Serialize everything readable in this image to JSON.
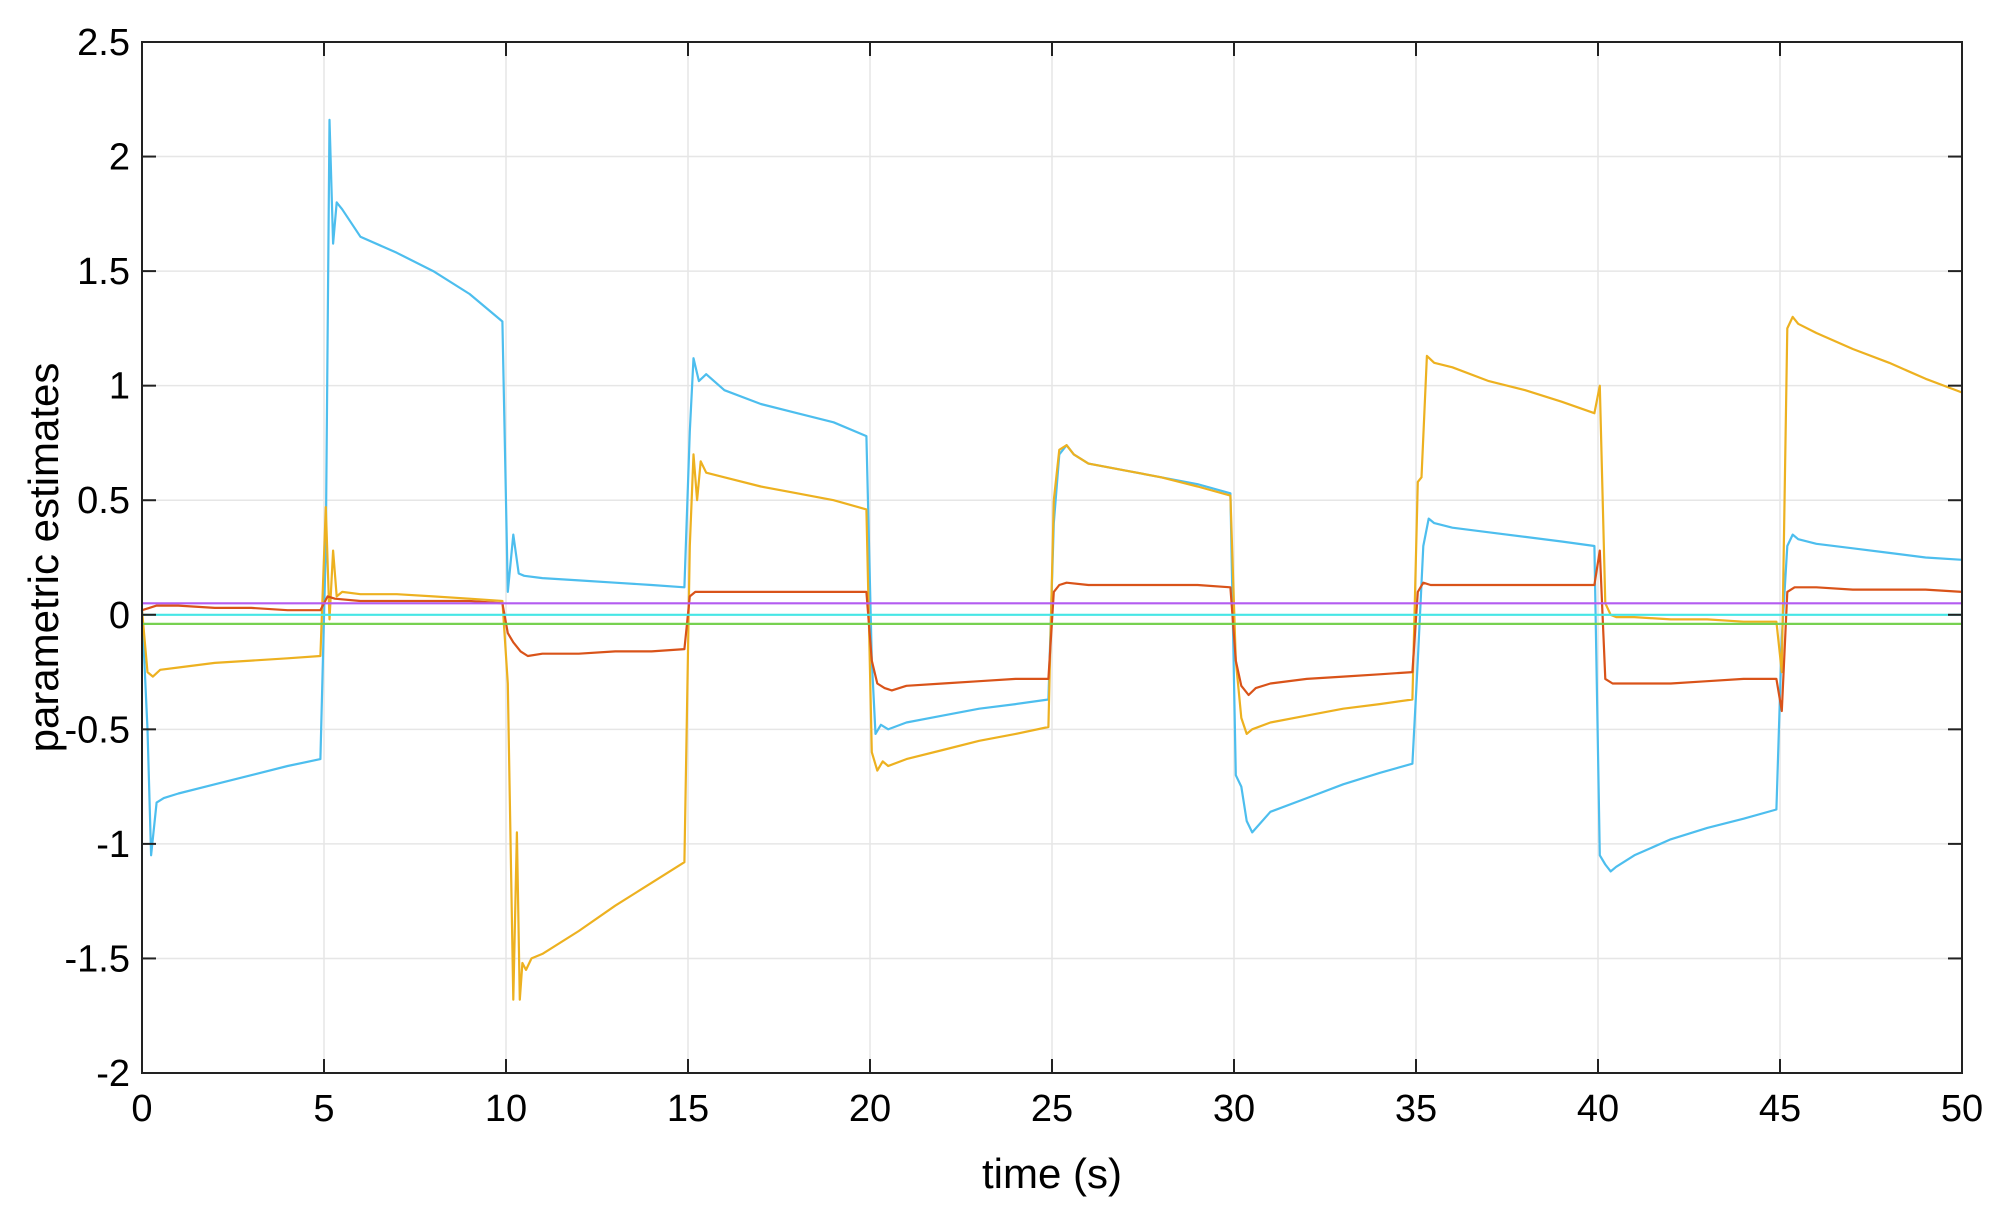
{
  "chart_data": {
    "type": "line",
    "title": "",
    "xlabel": "time (s)",
    "ylabel": "parametric estimates",
    "xlim": [
      0,
      50
    ],
    "ylim": [
      -2,
      2.5
    ],
    "xticks": [
      0,
      5,
      10,
      15,
      20,
      25,
      30,
      35,
      40,
      45,
      50
    ],
    "yticks": [
      -2,
      -1.5,
      -1,
      -0.5,
      0,
      0.5,
      1,
      1.5,
      2,
      2.5
    ],
    "xtick_labels": [
      "0",
      "5",
      "10",
      "15",
      "20",
      "25",
      "30",
      "35",
      "40",
      "45",
      "50"
    ],
    "ytick_labels": [
      "-2",
      "-1.5",
      "-1",
      "-0.5",
      "0",
      "0.5",
      "1",
      "1.5",
      "2",
      "2.5"
    ],
    "grid": true,
    "legend": "none",
    "series": [
      {
        "color": "#4DBEEE",
        "x": [
          0,
          0.15,
          0.25,
          0.4,
          0.6,
          1,
          2,
          3,
          4,
          4.9,
          5.05,
          5.15,
          5.25,
          5.35,
          5.5,
          6,
          7,
          8,
          9,
          9.9,
          10.05,
          10.2,
          10.35,
          10.5,
          11,
          12,
          13,
          14,
          14.9,
          15.05,
          15.15,
          15.3,
          15.5,
          16,
          17,
          18,
          19,
          19.9,
          20.05,
          20.15,
          20.3,
          20.5,
          21,
          22,
          23,
          24,
          24.9,
          25.05,
          25.2,
          25.4,
          25.6,
          26,
          27,
          28,
          29,
          29.9,
          30.05,
          30.2,
          30.35,
          30.5,
          31,
          32,
          33,
          34,
          34.9,
          35.05,
          35.2,
          35.35,
          35.5,
          36,
          37,
          38,
          39,
          39.9,
          40.05,
          40.2,
          40.35,
          40.5,
          41,
          42,
          43,
          44,
          44.9,
          45.05,
          45.2,
          45.35,
          45.5,
          46,
          47,
          48,
          49,
          50
        ],
        "y": [
          0.02,
          -0.5,
          -1.05,
          -0.82,
          -0.8,
          -0.78,
          -0.74,
          -0.7,
          -0.66,
          -0.63,
          0.3,
          2.16,
          1.62,
          1.8,
          1.77,
          1.65,
          1.58,
          1.5,
          1.4,
          1.28,
          0.1,
          0.35,
          0.18,
          0.17,
          0.16,
          0.15,
          0.14,
          0.13,
          0.12,
          0.8,
          1.12,
          1.02,
          1.05,
          0.98,
          0.92,
          0.88,
          0.84,
          0.78,
          -0.2,
          -0.52,
          -0.48,
          -0.5,
          -0.47,
          -0.44,
          -0.41,
          -0.39,
          -0.37,
          0.4,
          0.7,
          0.74,
          0.7,
          0.66,
          0.63,
          0.6,
          0.57,
          0.53,
          -0.7,
          -0.75,
          -0.9,
          -0.95,
          -0.86,
          -0.8,
          -0.74,
          -0.69,
          -0.65,
          -0.2,
          0.3,
          0.42,
          0.4,
          0.38,
          0.36,
          0.34,
          0.32,
          0.3,
          -1.05,
          -1.09,
          -1.12,
          -1.1,
          -1.05,
          -0.98,
          -0.93,
          -0.89,
          -0.85,
          -0.1,
          0.3,
          0.35,
          0.33,
          0.31,
          0.29,
          0.27,
          0.25,
          0.24
        ]
      },
      {
        "color": "#EDB120",
        "x": [
          0,
          0.15,
          0.3,
          0.5,
          1,
          2,
          3,
          4,
          4.9,
          5.05,
          5.15,
          5.25,
          5.35,
          5.5,
          6,
          7,
          8,
          9,
          9.9,
          10.05,
          10.2,
          10.3,
          10.38,
          10.45,
          10.55,
          10.7,
          11,
          12,
          13,
          14,
          14.9,
          15.05,
          15.15,
          15.25,
          15.35,
          15.5,
          16,
          17,
          18,
          19,
          19.9,
          20.05,
          20.2,
          20.35,
          20.5,
          21,
          22,
          23,
          24,
          24.9,
          25.05,
          25.2,
          25.4,
          25.6,
          26,
          27,
          28,
          29,
          29.9,
          30.05,
          30.2,
          30.35,
          30.5,
          31,
          32,
          33,
          34,
          34.9,
          35.05,
          35.15,
          35.3,
          35.5,
          36,
          37,
          38,
          39,
          39.9,
          40.05,
          40.2,
          40.35,
          40.5,
          41,
          42,
          43,
          44,
          44.9,
          45.05,
          45.2,
          45.35,
          45.5,
          46,
          47,
          48,
          49,
          50
        ],
        "y": [
          0.02,
          -0.25,
          -0.27,
          -0.24,
          -0.23,
          -0.21,
          -0.2,
          -0.19,
          -0.18,
          0.47,
          -0.02,
          0.28,
          0.08,
          0.1,
          0.09,
          0.09,
          0.08,
          0.07,
          0.06,
          -0.3,
          -1.68,
          -0.95,
          -1.68,
          -1.52,
          -1.55,
          -1.5,
          -1.48,
          -1.38,
          -1.27,
          -1.17,
          -1.08,
          0.3,
          0.7,
          0.5,
          0.67,
          0.62,
          0.6,
          0.56,
          0.53,
          0.5,
          0.46,
          -0.6,
          -0.68,
          -0.64,
          -0.66,
          -0.63,
          -0.59,
          -0.55,
          -0.52,
          -0.49,
          0.5,
          0.72,
          0.74,
          0.7,
          0.66,
          0.63,
          0.6,
          0.56,
          0.52,
          -0.2,
          -0.45,
          -0.52,
          -0.5,
          -0.47,
          -0.44,
          -0.41,
          -0.39,
          -0.37,
          0.58,
          0.6,
          1.13,
          1.1,
          1.08,
          1.02,
          0.98,
          0.93,
          0.88,
          1.0,
          0.05,
          0.0,
          -0.01,
          -0.01,
          -0.02,
          -0.02,
          -0.03,
          -0.03,
          -0.25,
          1.25,
          1.3,
          1.27,
          1.23,
          1.16,
          1.1,
          1.03,
          0.97
        ]
      },
      {
        "color": "#D95319",
        "x": [
          0,
          0.2,
          0.4,
          1,
          2,
          3,
          4,
          4.9,
          5.1,
          5.3,
          6,
          7,
          8,
          9,
          9.9,
          10.05,
          10.2,
          10.4,
          10.6,
          11,
          12,
          13,
          14,
          14.9,
          15.05,
          15.2,
          15.4,
          16,
          17,
          18,
          19,
          19.9,
          20.05,
          20.2,
          20.4,
          20.6,
          21,
          22,
          23,
          24,
          24.9,
          25.05,
          25.2,
          25.4,
          26,
          27,
          28,
          29,
          29.9,
          30.05,
          30.2,
          30.4,
          30.6,
          31,
          32,
          33,
          34,
          34.9,
          35.05,
          35.2,
          35.4,
          36,
          37,
          38,
          39,
          39.9,
          40.05,
          40.2,
          40.4,
          41,
          42,
          43,
          44,
          44.9,
          45.05,
          45.2,
          45.4,
          46,
          47,
          48,
          49,
          50
        ],
        "y": [
          0.02,
          0.03,
          0.04,
          0.04,
          0.03,
          0.03,
          0.02,
          0.02,
          0.08,
          0.07,
          0.06,
          0.06,
          0.06,
          0.06,
          0.05,
          -0.08,
          -0.12,
          -0.16,
          -0.18,
          -0.17,
          -0.17,
          -0.16,
          -0.16,
          -0.15,
          0.08,
          0.1,
          0.1,
          0.1,
          0.1,
          0.1,
          0.1,
          0.1,
          -0.2,
          -0.3,
          -0.32,
          -0.33,
          -0.31,
          -0.3,
          -0.29,
          -0.28,
          -0.28,
          0.1,
          0.13,
          0.14,
          0.13,
          0.13,
          0.13,
          0.13,
          0.12,
          -0.2,
          -0.31,
          -0.35,
          -0.32,
          -0.3,
          -0.28,
          -0.27,
          -0.26,
          -0.25,
          0.1,
          0.14,
          0.13,
          0.13,
          0.13,
          0.13,
          0.13,
          0.13,
          0.28,
          -0.28,
          -0.3,
          -0.3,
          -0.3,
          -0.29,
          -0.28,
          -0.28,
          -0.42,
          0.1,
          0.12,
          0.12,
          0.11,
          0.11,
          0.11,
          0.1
        ]
      },
      {
        "color": "#B45CF0",
        "x": [
          0,
          50
        ],
        "y": [
          0.05,
          0.05
        ]
      },
      {
        "color": "#46E6E6",
        "x": [
          0,
          50
        ],
        "y": [
          0.0,
          0.0
        ]
      },
      {
        "color": "#77D150",
        "x": [
          0,
          50
        ],
        "y": [
          -0.04,
          -0.04
        ]
      }
    ]
  }
}
